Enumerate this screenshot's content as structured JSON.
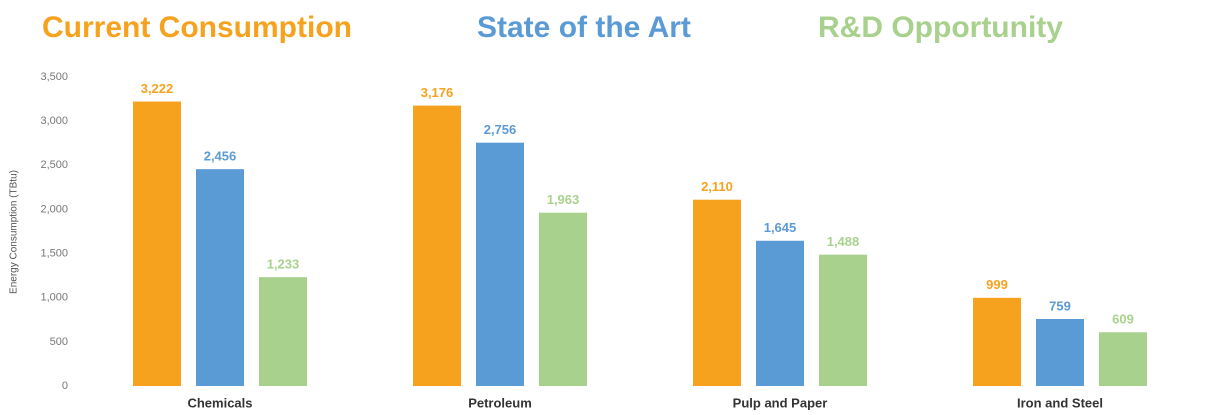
{
  "chart_data": {
    "type": "bar",
    "y_label": "Energy Consumption (TBtu)",
    "categories": [
      "Chemicals",
      "Petroleum",
      "Pulp and Paper",
      "Iron and Steel"
    ],
    "series": [
      {
        "name": "Current Consumption",
        "color": "#f7a21e",
        "values": [
          3222,
          3176,
          2110,
          999
        ],
        "value_labels": [
          "3,222",
          "3,176",
          "2,110",
          "999"
        ]
      },
      {
        "name": "State of the Art",
        "color": "#5b9bd5",
        "values": [
          2456,
          2756,
          1645,
          759
        ],
        "value_labels": [
          "2,456",
          "2,756",
          "1,645",
          "759"
        ]
      },
      {
        "name": "R&D Opportunity",
        "color": "#a9d18e",
        "values": [
          1233,
          1963,
          1488,
          609
        ],
        "value_labels": [
          "1,233",
          "1,963",
          "1,488",
          "609"
        ]
      }
    ],
    "ylim": [
      0,
      3500
    ],
    "yticks": [
      0,
      500,
      {
        "value": 1000,
        "label": "1,000"
      },
      {
        "value": 1500,
        "label": "1,500"
      },
      {
        "value": 2000,
        "label": "2,000"
      },
      {
        "value": 2500,
        "label": "2,500"
      },
      {
        "value": 3000,
        "label": "3,000"
      },
      {
        "value": 3500,
        "label": "3,500"
      }
    ],
    "legend": "top",
    "grid": false
  }
}
